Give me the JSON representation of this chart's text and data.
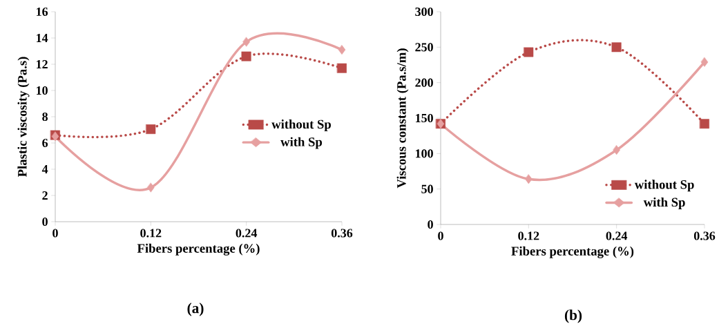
{
  "chart_data": [
    {
      "type": "line",
      "xlabel": "Fibers percentage (%)",
      "ylabel": "Plastic viscosity (Pa.s)",
      "x": [
        0,
        0.12,
        0.24,
        0.36
      ],
      "series": [
        {
          "name": "without Sp",
          "color": "#b94a48",
          "values": [
            6.6,
            7.05,
            12.6,
            11.7
          ],
          "marker": "square",
          "line_style": "dotted"
        },
        {
          "name": "with Sp",
          "color": "#e6a0a0",
          "values": [
            6.5,
            2.6,
            13.7,
            13.1
          ],
          "marker": "diamond",
          "line_style": "solid"
        }
      ],
      "xlim": [
        0,
        0.36
      ],
      "xticks": [
        0,
        0.12,
        0.24,
        0.36
      ],
      "ylim": [
        0,
        16
      ],
      "yticks": [
        0,
        2,
        4,
        6,
        8,
        10,
        12,
        14,
        16
      ],
      "legend": "right",
      "annotations": [
        "(a)"
      ]
    },
    {
      "type": "line",
      "xlabel": "Fibers percentage (%)",
      "ylabel": "Viscous constant (Pa.s/m)",
      "x": [
        0,
        0.12,
        0.24,
        0.36
      ],
      "series": [
        {
          "name": "without Sp",
          "color": "#b94a48",
          "values": [
            142,
            243,
            250,
            142
          ],
          "marker": "square",
          "line_style": "dotted"
        },
        {
          "name": "with Sp",
          "color": "#e6a0a0",
          "values": [
            142,
            64,
            105,
            229
          ],
          "marker": "diamond",
          "line_style": "solid"
        }
      ],
      "xlim": [
        0,
        0.36
      ],
      "xticks": [
        0,
        0.12,
        0.24,
        0.36
      ],
      "ylim": [
        0,
        300
      ],
      "yticks": [
        0,
        50,
        100,
        150,
        200,
        250,
        300
      ],
      "legend": "bottom right",
      "annotations": [
        "(b)"
      ]
    }
  ]
}
